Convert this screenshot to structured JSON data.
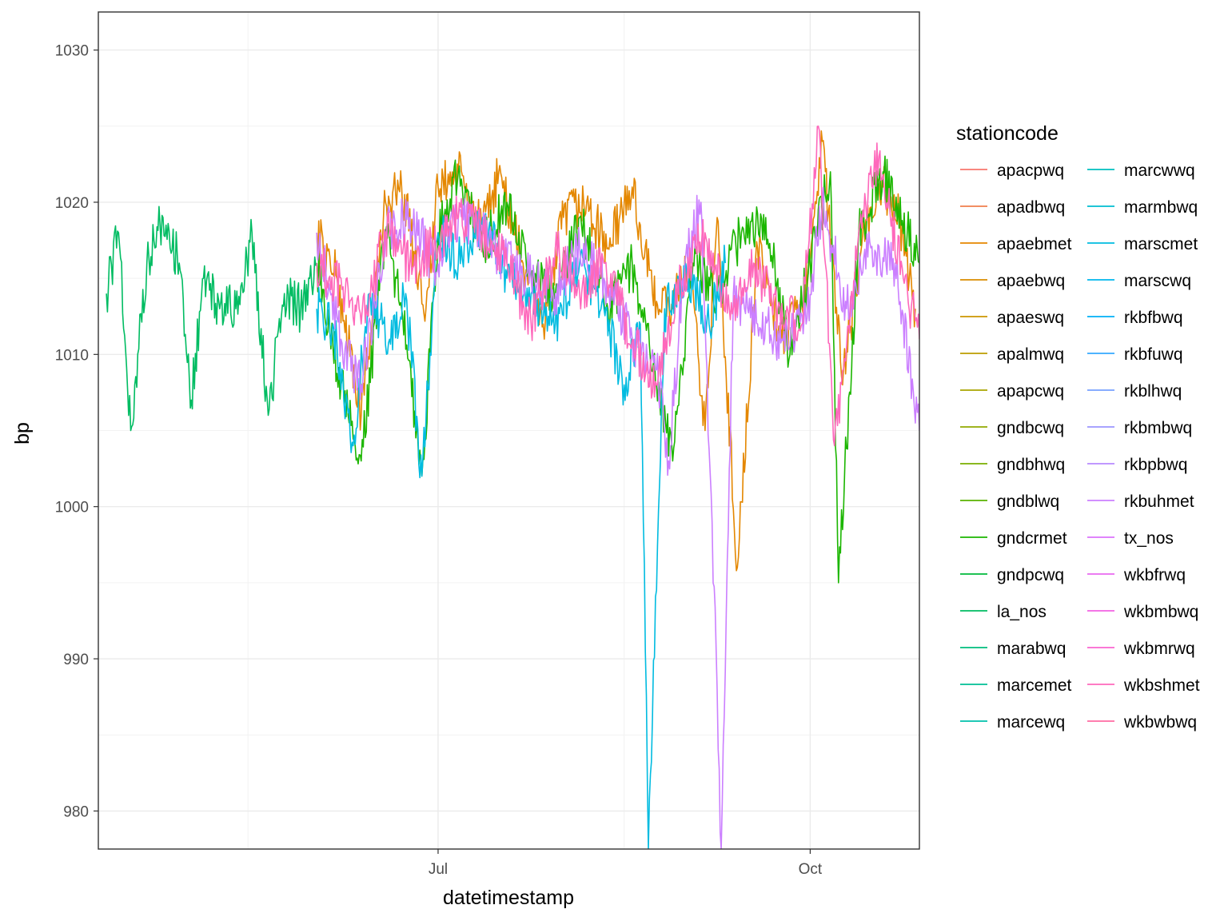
{
  "chart_data": {
    "type": "line",
    "xlabel": "datetimestamp",
    "ylabel": "bp",
    "x_ticks": [
      "Jul",
      "Oct"
    ],
    "y_ticks": [
      980,
      990,
      1000,
      1010,
      1020,
      1030
    ],
    "ylim": [
      977.5,
      1032.5
    ],
    "xlim": [
      "2017-04-08",
      "2017-10-28"
    ],
    "grid": true,
    "legend_title": "stationcode",
    "legend_position": "right",
    "legend_columns": 2,
    "series": [
      {
        "name": "apacpwq",
        "color": "#F8766D",
        "points": []
      },
      {
        "name": "apadbwq",
        "color": "#F07E4D",
        "points": []
      },
      {
        "name": "apaebmet",
        "color": "#E48700",
        "points": [
          [
            "2017-06-01",
            1018
          ],
          [
            "2017-06-06",
            1015
          ],
          [
            "2017-06-12",
            1006
          ],
          [
            "2017-06-18",
            1020
          ],
          [
            "2017-06-22",
            1021
          ],
          [
            "2017-06-28",
            1013
          ],
          [
            "2017-07-01",
            1021
          ],
          [
            "2017-07-06",
            1022
          ],
          [
            "2017-07-12",
            1018
          ],
          [
            "2017-07-16",
            1022
          ],
          [
            "2017-07-22",
            1016
          ],
          [
            "2017-07-27",
            1012
          ],
          [
            "2017-08-01",
            1019
          ],
          [
            "2017-08-06",
            1020
          ],
          [
            "2017-08-12",
            1017
          ],
          [
            "2017-08-18",
            1021
          ],
          [
            "2017-08-23",
            1014
          ],
          [
            "2017-08-28",
            1013
          ],
          [
            "2017-09-01",
            1016
          ],
          [
            "2017-09-05",
            1005
          ],
          [
            "2017-09-08",
            1019
          ],
          [
            "2017-09-13",
            996
          ],
          [
            "2017-09-18",
            1017
          ],
          [
            "2017-09-24",
            1011
          ],
          [
            "2017-09-29",
            1013
          ],
          [
            "2017-10-04",
            1024
          ],
          [
            "2017-10-09",
            1008
          ],
          [
            "2017-10-14",
            1018
          ],
          [
            "2017-10-19",
            1021
          ],
          [
            "2017-10-23",
            1019
          ],
          [
            "2017-10-27",
            1013
          ]
        ]
      },
      {
        "name": "apaebwq",
        "color": "#DA8D00",
        "points": []
      },
      {
        "name": "apaeswq",
        "color": "#CC9600",
        "points": []
      },
      {
        "name": "apalmwq",
        "color": "#BC9D00",
        "points": []
      },
      {
        "name": "apapcwq",
        "color": "#A9A400",
        "points": []
      },
      {
        "name": "gndbcwq",
        "color": "#93AA00",
        "points": []
      },
      {
        "name": "gndbhwq",
        "color": "#7AAE00",
        "points": []
      },
      {
        "name": "gndblwq",
        "color": "#5AB300",
        "points": []
      },
      {
        "name": "gndcrmet",
        "color": "#1BB600",
        "points": [
          [
            "2017-06-01",
            1016
          ],
          [
            "2017-06-07",
            1008
          ],
          [
            "2017-06-12",
            1003
          ],
          [
            "2017-06-18",
            1018
          ],
          [
            "2017-06-22",
            1013
          ],
          [
            "2017-06-27",
            1002
          ],
          [
            "2017-07-01",
            1018
          ],
          [
            "2017-07-06",
            1022
          ],
          [
            "2017-07-12",
            1017
          ],
          [
            "2017-07-18",
            1020
          ],
          [
            "2017-07-24",
            1015
          ],
          [
            "2017-07-30",
            1014
          ],
          [
            "2017-08-05",
            1019
          ],
          [
            "2017-08-12",
            1013
          ],
          [
            "2017-08-18",
            1016
          ],
          [
            "2017-08-24",
            1008
          ],
          [
            "2017-08-28",
            1003
          ],
          [
            "2017-09-02",
            1016
          ],
          [
            "2017-09-08",
            1014
          ],
          [
            "2017-09-14",
            1018
          ],
          [
            "2017-09-20",
            1019
          ],
          [
            "2017-09-26",
            1010
          ],
          [
            "2017-10-01",
            1016
          ],
          [
            "2017-10-06",
            1022
          ],
          [
            "2017-10-08",
            995
          ],
          [
            "2017-10-13",
            1018
          ],
          [
            "2017-10-19",
            1022
          ],
          [
            "2017-10-25",
            1018
          ],
          [
            "2017-10-28",
            1016
          ]
        ]
      },
      {
        "name": "gndpcwq",
        "color": "#00B93C",
        "points": []
      },
      {
        "name": "la_nos",
        "color": "#00BC62",
        "points": [
          [
            "2017-04-10",
            1014
          ],
          [
            "2017-04-13",
            1018
          ],
          [
            "2017-04-16",
            1005
          ],
          [
            "2017-04-20",
            1016
          ],
          [
            "2017-04-24",
            1019
          ],
          [
            "2017-04-28",
            1016
          ],
          [
            "2017-05-01",
            1007
          ],
          [
            "2017-05-04",
            1015
          ],
          [
            "2017-05-08",
            1013
          ],
          [
            "2017-05-12",
            1013
          ],
          [
            "2017-05-16",
            1018
          ],
          [
            "2017-05-20",
            1006
          ],
          [
            "2017-05-24",
            1014
          ],
          [
            "2017-05-28",
            1013
          ],
          [
            "2017-06-01",
            1016
          ]
        ]
      },
      {
        "name": "marabwq",
        "color": "#00BE7D",
        "points": []
      },
      {
        "name": "marcemet",
        "color": "#00BF95",
        "points": []
      },
      {
        "name": "marcewq",
        "color": "#00C0AB",
        "points": []
      },
      {
        "name": "marcwwq",
        "color": "#00BFBF",
        "points": []
      },
      {
        "name": "marmbwq",
        "color": "#00BDD1",
        "points": []
      },
      {
        "name": "marscmet",
        "color": "#00BBE0",
        "points": [
          [
            "2017-06-01",
            1013
          ],
          [
            "2017-06-05",
            1012
          ],
          [
            "2017-06-10",
            1004
          ],
          [
            "2017-06-14",
            1014
          ],
          [
            "2017-06-19",
            1011
          ],
          [
            "2017-06-23",
            1014
          ],
          [
            "2017-06-27",
            1002
          ],
          [
            "2017-07-01",
            1018
          ],
          [
            "2017-07-06",
            1016
          ],
          [
            "2017-07-12",
            1019
          ],
          [
            "2017-07-18",
            1015
          ],
          [
            "2017-07-24",
            1014
          ],
          [
            "2017-07-30",
            1012
          ],
          [
            "2017-08-05",
            1016
          ],
          [
            "2017-08-11",
            1013
          ],
          [
            "2017-08-16",
            1008
          ],
          [
            "2017-08-20",
            1012
          ],
          [
            "2017-08-22",
            977.5
          ],
          [
            "2017-08-26",
            1013
          ],
          [
            "2017-09-01",
            1015
          ],
          [
            "2017-09-06",
            1012
          ],
          [
            "2017-09-10",
            1016
          ]
        ]
      },
      {
        "name": "marscwq",
        "color": "#00B7ED",
        "points": []
      },
      {
        "name": "rkbfbwq",
        "color": "#00B1F7",
        "points": []
      },
      {
        "name": "rkbfuwq",
        "color": "#35A9FF",
        "points": []
      },
      {
        "name": "rkblhwq",
        "color": "#77A0FF",
        "points": []
      },
      {
        "name": "rkbmbwq",
        "color": "#9C96FF",
        "points": []
      },
      {
        "name": "rkbpbwq",
        "color": "#B78AFF",
        "points": []
      },
      {
        "name": "rkbuhmet",
        "color": "#CB7FFF",
        "points": [
          [
            "2017-06-01",
            1018
          ],
          [
            "2017-06-07",
            1011
          ],
          [
            "2017-06-12",
            1008
          ],
          [
            "2017-06-18",
            1018
          ],
          [
            "2017-06-24",
            1019
          ],
          [
            "2017-06-30",
            1016
          ],
          [
            "2017-07-06",
            1019
          ],
          [
            "2017-07-12",
            1018
          ],
          [
            "2017-07-18",
            1016
          ],
          [
            "2017-07-24",
            1015
          ],
          [
            "2017-07-30",
            1014
          ],
          [
            "2017-08-05",
            1017
          ],
          [
            "2017-08-11",
            1015
          ],
          [
            "2017-08-18",
            1011
          ],
          [
            "2017-08-24",
            1009
          ],
          [
            "2017-08-27",
            1003
          ],
          [
            "2017-08-31",
            1016
          ],
          [
            "2017-09-04",
            1020
          ],
          [
            "2017-09-08",
            988
          ],
          [
            "2017-09-09",
            977.5
          ],
          [
            "2017-09-12",
            1014
          ],
          [
            "2017-09-18",
            1012
          ],
          [
            "2017-09-24",
            1011
          ],
          [
            "2017-09-30",
            1012
          ],
          [
            "2017-10-04",
            1020
          ],
          [
            "2017-10-10",
            1013
          ],
          [
            "2017-10-16",
            1017
          ],
          [
            "2017-10-22",
            1016
          ],
          [
            "2017-10-28",
            1005
          ]
        ]
      },
      {
        "name": "tx_nos",
        "color": "#DB72FB",
        "points": []
      },
      {
        "name": "wkbfrwq",
        "color": "#E869F1",
        "points": []
      },
      {
        "name": "wkbmbwq",
        "color": "#F263E2",
        "points": []
      },
      {
        "name": "wkbmrwq",
        "color": "#F964D0",
        "points": []
      },
      {
        "name": "wkbshmet",
        "color": "#FE68BB",
        "points": [
          [
            "2017-06-01",
            1016
          ],
          [
            "2017-06-08",
            1014
          ],
          [
            "2017-06-12",
            1012
          ],
          [
            "2017-06-18",
            1018
          ],
          [
            "2017-06-24",
            1016
          ],
          [
            "2017-06-30",
            1017
          ],
          [
            "2017-07-06",
            1019
          ],
          [
            "2017-07-12",
            1018
          ],
          [
            "2017-07-18",
            1016
          ],
          [
            "2017-07-24",
            1012
          ],
          [
            "2017-07-30",
            1017
          ],
          [
            "2017-08-05",
            1014
          ],
          [
            "2017-08-11",
            1016
          ],
          [
            "2017-08-18",
            1011
          ],
          [
            "2017-08-24",
            1008
          ],
          [
            "2017-08-30",
            1015
          ],
          [
            "2017-09-05",
            1018
          ],
          [
            "2017-09-11",
            1013
          ],
          [
            "2017-09-17",
            1016
          ],
          [
            "2017-09-23",
            1013
          ],
          [
            "2017-09-29",
            1012
          ],
          [
            "2017-10-03",
            1025
          ],
          [
            "2017-10-07",
            1004
          ],
          [
            "2017-10-13",
            1018
          ],
          [
            "2017-10-18",
            1023
          ],
          [
            "2017-10-24",
            1015
          ],
          [
            "2017-10-28",
            1011
          ]
        ]
      },
      {
        "name": "wkbwbwq",
        "color": "#FF6BA2",
        "points": []
      }
    ]
  }
}
